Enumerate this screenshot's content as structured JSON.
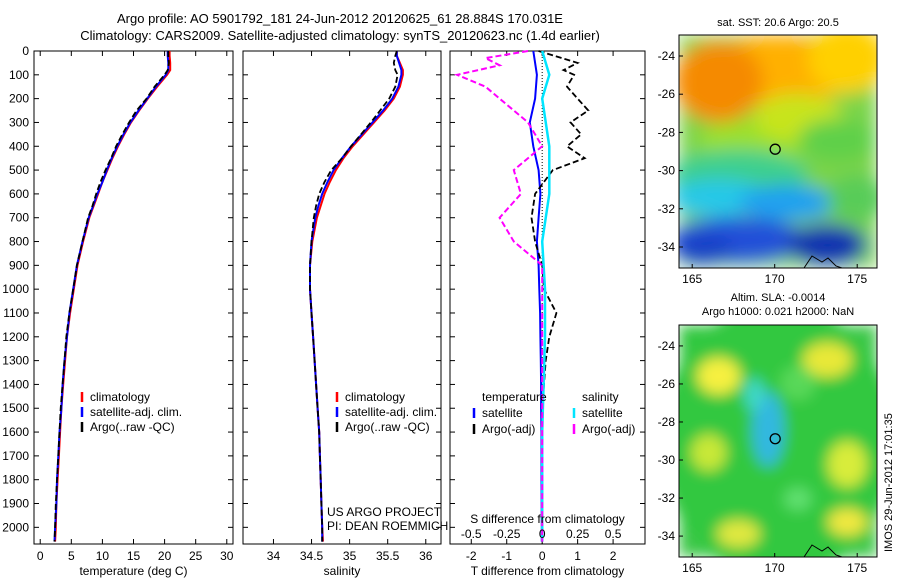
{
  "header": {
    "line1": "Argo profile: AO 5901792_181 24-Jun-2012 20120625_61 28.884S 170.031E",
    "line2": "Climatology: CARS2009. Satellite-adjusted climatology: synTS_20120623.nc (1.4d earlier)"
  },
  "stamp": "IMOS 29-Jun-2012 17:01:35",
  "colors": {
    "climatology": "#ff0000",
    "satellite": "#0000ff",
    "argo": "#000000",
    "salinity_satellite": "#00e5ff",
    "salinity_argo": "#ff00ff"
  },
  "chart_data": [
    {
      "id": "temperature",
      "type": "line",
      "xlabel": "temperature (deg C)",
      "xlim": [
        -1,
        31
      ],
      "xticks": [
        0,
        5,
        10,
        15,
        20,
        25,
        30
      ],
      "ylim": [
        2070,
        0
      ],
      "yticks": [
        0,
        100,
        200,
        300,
        400,
        500,
        600,
        700,
        800,
        900,
        1000,
        1100,
        1200,
        1300,
        1400,
        1500,
        1600,
        1700,
        1800,
        1900,
        2000
      ],
      "depth": [
        0,
        20,
        50,
        80,
        100,
        150,
        200,
        250,
        300,
        350,
        400,
        450,
        500,
        550,
        600,
        650,
        700,
        800,
        900,
        1000,
        1100,
        1200,
        1300,
        1400,
        1500,
        1600,
        1700,
        1800,
        1900,
        2000,
        2060
      ],
      "legend": [
        "climatology",
        "satellite-adj. clim.",
        "Argo(..raw -QC)"
      ],
      "series": [
        {
          "name": "climatology",
          "values": [
            20.8,
            20.8,
            20.9,
            20.9,
            20.4,
            18.8,
            17.3,
            15.9,
            14.6,
            13.5,
            12.5,
            11.6,
            10.8,
            10.0,
            9.3,
            8.6,
            7.9,
            6.9,
            6.0,
            5.4,
            4.8,
            4.3,
            4.0,
            3.7,
            3.4,
            3.2,
            3.0,
            2.8,
            2.6,
            2.5,
            2.4
          ]
        },
        {
          "name": "satellite-adj. clim.",
          "values": [
            20.5,
            20.5,
            20.6,
            20.6,
            20.2,
            18.6,
            17.2,
            15.8,
            14.5,
            13.4,
            12.4,
            11.5,
            10.7,
            10.0,
            9.2,
            8.5,
            7.8,
            6.8,
            5.9,
            5.3,
            4.7,
            4.3,
            3.9,
            3.6,
            3.4,
            3.1,
            2.9,
            2.7,
            2.6,
            2.4,
            2.3
          ]
        },
        {
          "name": "Argo(..raw -QC)",
          "values": [
            20.6,
            20.6,
            20.7,
            20.5,
            20.0,
            18.4,
            17.1,
            15.5,
            14.3,
            13.2,
            12.2,
            11.4,
            10.5,
            9.7,
            9.0,
            8.4,
            7.7,
            6.8,
            5.9,
            5.3,
            4.7,
            4.2,
            3.9,
            3.6,
            3.3,
            3.1,
            2.9,
            2.7,
            2.5,
            2.4,
            2.3
          ]
        }
      ]
    },
    {
      "id": "salinity",
      "type": "line",
      "xlabel": "salinity",
      "xlim": [
        33.6,
        36.2
      ],
      "xticks": [
        34,
        34.5,
        35,
        35.5,
        36
      ],
      "ylim": [
        2070,
        0
      ],
      "depth": [
        0,
        20,
        50,
        80,
        100,
        150,
        200,
        250,
        300,
        350,
        400,
        450,
        500,
        550,
        600,
        650,
        700,
        800,
        900,
        1000,
        1100,
        1200,
        1300,
        1400,
        1500,
        1600,
        1700,
        1800,
        1900,
        2000,
        2060
      ],
      "legend": [
        "climatology",
        "satellite-adj. clim.",
        "Argo(..raw -QC)"
      ],
      "annotations": [
        "US ARGO PROJECT",
        "PI: DEAN ROEMMICH"
      ],
      "series": [
        {
          "name": "climatology",
          "values": [
            35.62,
            35.62,
            35.66,
            35.7,
            35.7,
            35.66,
            35.58,
            35.46,
            35.32,
            35.18,
            35.04,
            34.92,
            34.82,
            34.74,
            34.67,
            34.62,
            34.57,
            34.51,
            34.48,
            34.48,
            34.5,
            34.52,
            34.54,
            34.56,
            34.58,
            34.6,
            34.61,
            34.62,
            34.63,
            34.64,
            34.65
          ]
        },
        {
          "name": "satellite-adj. clim.",
          "values": [
            35.62,
            35.62,
            35.65,
            35.68,
            35.68,
            35.64,
            35.56,
            35.44,
            35.3,
            35.16,
            35.02,
            34.9,
            34.79,
            34.71,
            34.64,
            34.59,
            34.55,
            34.5,
            34.48,
            34.48,
            34.5,
            34.52,
            34.54,
            34.56,
            34.58,
            34.6,
            34.61,
            34.62,
            34.63,
            34.64,
            34.64
          ]
        },
        {
          "name": "Argo(..raw -QC)",
          "values": [
            35.62,
            35.6,
            35.58,
            35.6,
            35.63,
            35.6,
            35.52,
            35.4,
            35.28,
            35.15,
            35.02,
            34.9,
            34.76,
            34.67,
            34.6,
            34.56,
            34.53,
            34.5,
            34.48,
            34.48,
            34.5,
            34.52,
            34.54,
            34.56,
            34.58,
            34.6,
            34.61,
            34.62,
            34.63,
            34.64,
            34.64
          ]
        }
      ]
    },
    {
      "id": "difference",
      "type": "line",
      "xlabel": "T difference from climatology",
      "xlabel_top": "S difference from climatology",
      "xlim": [
        -2.6,
        2.9
      ],
      "xticks": [
        -2,
        -1,
        0,
        1,
        2
      ],
      "xticks_s_labels": [
        "-0.5",
        "-0.25",
        "0",
        "0.25",
        "0.5"
      ],
      "ylim": [
        2070,
        0
      ],
      "legend_headers": [
        "temperature",
        "salinity"
      ],
      "legend": [
        "satellite",
        "Argo(-adj)",
        "satellite",
        "Argo(-adj)"
      ],
      "series": [
        {
          "name": "temperature satellite",
          "depth": [
            0,
            50,
            100,
            200,
            300,
            400,
            500,
            600,
            700,
            800,
            900,
            1000,
            1100,
            1200,
            1300,
            1400,
            1500,
            1600,
            1800,
            2000,
            2060
          ],
          "values": [
            -0.25,
            -0.2,
            -0.15,
            -0.2,
            -0.35,
            -0.25,
            -0.1,
            -0.05,
            -0.1,
            -0.15,
            -0.1,
            -0.08,
            -0.06,
            -0.05,
            -0.04,
            -0.03,
            -0.03,
            -0.02,
            -0.02,
            -0.01,
            -0.01
          ]
        },
        {
          "name": "temperature Argo(-adj)",
          "depth": [
            0,
            50,
            80,
            100,
            150,
            200,
            250,
            300,
            350,
            400,
            450,
            500,
            600,
            700,
            800,
            850,
            900,
            1000,
            1100,
            1200,
            1300,
            1400,
            1500,
            1700,
            1900,
            2060
          ],
          "values": [
            -0.1,
            1.0,
            0.6,
            0.9,
            0.7,
            1.0,
            1.3,
            0.8,
            1.1,
            0.7,
            1.2,
            0.3,
            -0.2,
            -0.3,
            -0.2,
            -0.1,
            0.0,
            0.05,
            0.4,
            0.2,
            0.1,
            0.05,
            0.0,
            0.0,
            0.0,
            0.0
          ]
        },
        {
          "name": "salinity satellite",
          "depth": [
            0,
            100,
            200,
            400,
            600,
            800,
            1000,
            1200,
            1400,
            1600,
            1800,
            2060
          ],
          "values": [
            0.0,
            0.05,
            0.0,
            0.05,
            0.05,
            0.0,
            0.02,
            0.02,
            0.01,
            0.0,
            0.0,
            0.0
          ]
        },
        {
          "name": "salinity Argo(-adj)",
          "depth": [
            0,
            30,
            60,
            100,
            150,
            200,
            300,
            400,
            500,
            600,
            700,
            800,
            850,
            900,
            1000,
            1200,
            1500,
            2060
          ],
          "values": [
            -0.1,
            -0.4,
            -0.3,
            -0.6,
            -0.4,
            -0.3,
            -0.1,
            0.0,
            -0.2,
            -0.15,
            -0.3,
            -0.2,
            -0.1,
            0.0,
            0.0,
            0.0,
            0.0,
            0.0
          ]
        }
      ]
    },
    {
      "id": "sst-map",
      "type": "heatmap",
      "title": "sat. SST: 20.6 Argo: 20.5",
      "xticks": [
        165,
        170,
        175
      ],
      "yticks": [
        -24,
        -26,
        -28,
        -30,
        -32,
        -34
      ],
      "xlim": [
        164.2,
        176.2
      ],
      "ylim": [
        -35.1,
        -22.9
      ],
      "marker": {
        "lon": 170.03,
        "lat": -28.88
      }
    },
    {
      "id": "sla-map",
      "type": "heatmap",
      "title_line1": "Altim. SLA: -0.0014",
      "title_line2": "Argo h1000: 0.021 h2000: NaN",
      "xticks": [
        165,
        170,
        175
      ],
      "yticks": [
        -24,
        -26,
        -28,
        -30,
        -32,
        -34
      ],
      "xlim": [
        164.2,
        176.2
      ],
      "ylim": [
        -35.1,
        -22.9
      ],
      "marker": {
        "lon": 170.03,
        "lat": -28.88
      }
    }
  ]
}
